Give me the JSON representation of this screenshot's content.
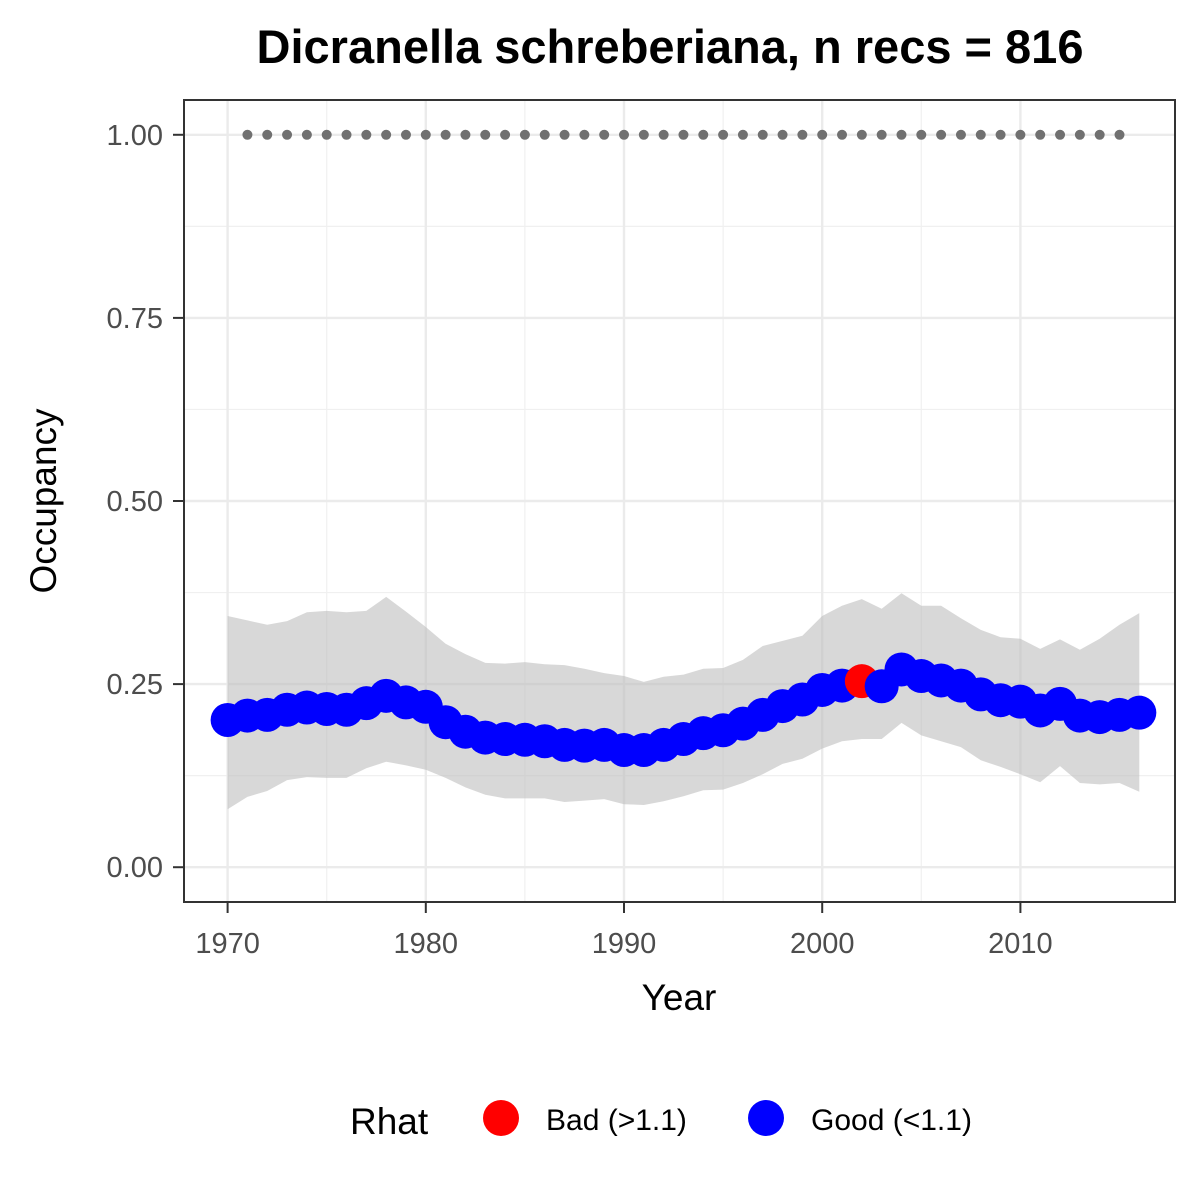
{
  "chart_data": {
    "type": "line",
    "title": "Dicranella schreberiana, n recs = 816",
    "xlabel": "Year",
    "ylabel": "Occupancy",
    "xlim": [
      1967.8,
      2017.8
    ],
    "ylim": [
      -0.0475,
      1.0475
    ],
    "x_ticks": [
      1970,
      1980,
      1990,
      2000,
      2010
    ],
    "x_tick_labels": [
      "1970",
      "1980",
      "1990",
      "2000",
      "2010"
    ],
    "y_ticks": [
      0,
      0.25,
      0.5,
      0.75,
      1.0
    ],
    "y_tick_labels": [
      "0.00",
      "0.25",
      "0.50",
      "0.75",
      "1.00"
    ],
    "grid": true,
    "legend": {
      "title": "Rhat",
      "placement": "bottom",
      "entries": [
        {
          "label": "Bad (>1.1)",
          "color": "#ff0000"
        },
        {
          "label": "Good (<1.1)",
          "color": "#0000ff"
        }
      ]
    },
    "colors": {
      "good": "#0000ff",
      "bad": "#ff0000",
      "ribbon": "#bebebe",
      "reference": "#707070"
    },
    "series": [
      {
        "x": [
          1970,
          1971,
          1972,
          1973,
          1974,
          1975,
          1976,
          1977,
          1978,
          1979,
          1980,
          1981,
          1982,
          1983,
          1984,
          1985,
          1986,
          1987,
          1988,
          1989,
          1990,
          1991,
          1992,
          1993,
          1994,
          1995,
          1996,
          1997,
          1998,
          1999,
          2000,
          2001,
          2002,
          2003,
          2004,
          2005,
          2006,
          2007,
          2008,
          2009,
          2010,
          2011,
          2012,
          2013,
          2014,
          2015,
          2016
        ],
        "y": [
          0.201,
          0.207,
          0.208,
          0.215,
          0.218,
          0.216,
          0.215,
          0.224,
          0.234,
          0.225,
          0.219,
          0.198,
          0.185,
          0.177,
          0.175,
          0.174,
          0.172,
          0.167,
          0.166,
          0.167,
          0.16,
          0.16,
          0.167,
          0.175,
          0.183,
          0.187,
          0.196,
          0.208,
          0.22,
          0.229,
          0.242,
          0.248,
          0.254,
          0.247,
          0.27,
          0.261,
          0.255,
          0.248,
          0.236,
          0.228,
          0.226,
          0.214,
          0.223,
          0.207,
          0.205,
          0.208,
          0.211
        ],
        "lower": [
          0.079,
          0.096,
          0.104,
          0.119,
          0.123,
          0.122,
          0.122,
          0.135,
          0.144,
          0.139,
          0.133,
          0.122,
          0.109,
          0.099,
          0.094,
          0.094,
          0.094,
          0.089,
          0.091,
          0.093,
          0.086,
          0.085,
          0.09,
          0.097,
          0.105,
          0.106,
          0.115,
          0.127,
          0.141,
          0.148,
          0.162,
          0.172,
          0.175,
          0.175,
          0.197,
          0.18,
          0.172,
          0.164,
          0.146,
          0.137,
          0.127,
          0.116,
          0.138,
          0.115,
          0.113,
          0.115,
          0.103
        ],
        "upper": [
          0.343,
          0.337,
          0.331,
          0.336,
          0.348,
          0.35,
          0.348,
          0.35,
          0.369,
          0.349,
          0.328,
          0.305,
          0.291,
          0.279,
          0.278,
          0.28,
          0.277,
          0.276,
          0.271,
          0.265,
          0.261,
          0.253,
          0.26,
          0.263,
          0.271,
          0.272,
          0.283,
          0.302,
          0.309,
          0.316,
          0.343,
          0.357,
          0.366,
          0.353,
          0.374,
          0.357,
          0.357,
          0.34,
          0.324,
          0.314,
          0.312,
          0.298,
          0.311,
          0.297,
          0.312,
          0.331,
          0.347
        ],
        "rhat": [
          "good",
          "good",
          "good",
          "good",
          "good",
          "good",
          "good",
          "good",
          "good",
          "good",
          "good",
          "good",
          "good",
          "good",
          "good",
          "good",
          "good",
          "good",
          "good",
          "good",
          "good",
          "good",
          "good",
          "good",
          "good",
          "good",
          "good",
          "good",
          "good",
          "good",
          "good",
          "good",
          "bad",
          "good",
          "good",
          "good",
          "good",
          "good",
          "good",
          "good",
          "good",
          "good",
          "good",
          "good",
          "good",
          "good",
          "good"
        ]
      },
      {
        "x": [
          1971,
          1972,
          1973,
          1974,
          1975,
          1976,
          1977,
          1978,
          1979,
          1980,
          1981,
          1982,
          1983,
          1984,
          1985,
          1986,
          1987,
          1988,
          1989,
          1990,
          1991,
          1992,
          1993,
          1994,
          1995,
          1996,
          1997,
          1998,
          1999,
          2000,
          2001,
          2002,
          2003,
          2004,
          2005,
          2006,
          2007,
          2008,
          2009,
          2010,
          2011,
          2012,
          2013,
          2014,
          2015
        ],
        "y": [
          1,
          1,
          1,
          1,
          1,
          1,
          1,
          1,
          1,
          1,
          1,
          1,
          1,
          1,
          1,
          1,
          1,
          1,
          1,
          1,
          1,
          1,
          1,
          1,
          1,
          1,
          1,
          1,
          1,
          1,
          1,
          1,
          1,
          1,
          1,
          1,
          1,
          1,
          1,
          1,
          1,
          1,
          1,
          1,
          1
        ]
      }
    ]
  }
}
